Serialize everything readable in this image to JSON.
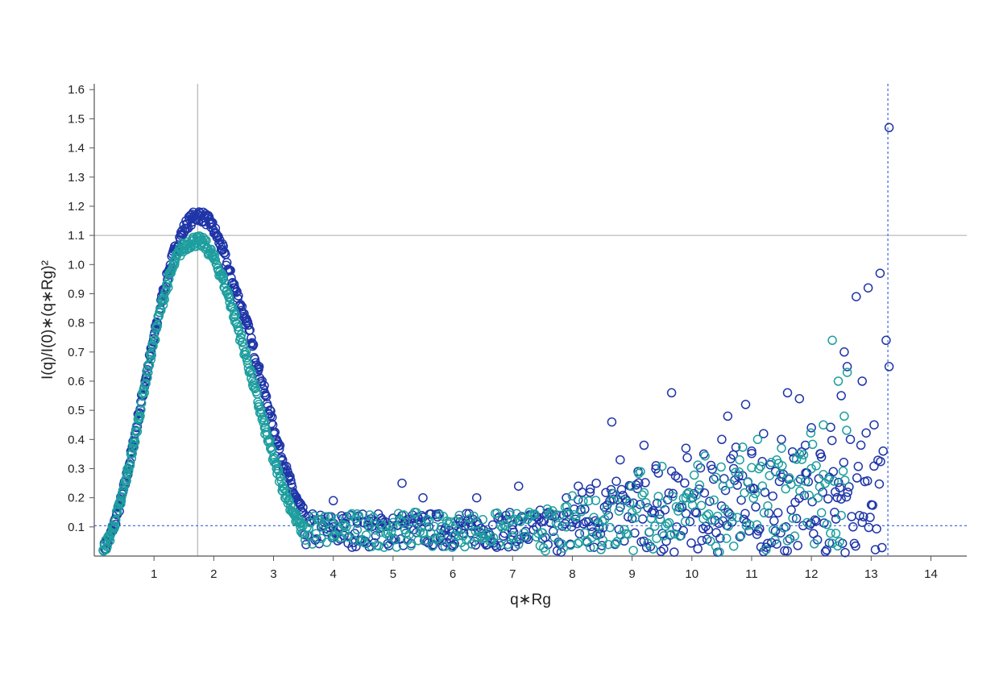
{
  "chart_data": {
    "type": "scatter",
    "xlabel": "q∗Rg",
    "ylabel": "I(q)/I(0)∗(q∗Rg)²",
    "xlim": [
      0,
      14.6
    ],
    "ylim": [
      0,
      1.62
    ],
    "x_ticks": [
      1,
      2,
      3,
      4,
      5,
      6,
      7,
      8,
      9,
      10,
      11,
      12,
      13,
      14
    ],
    "y_ticks": [
      0.1,
      0.2,
      0.3,
      0.4,
      0.5,
      0.6,
      0.7,
      0.8,
      0.9,
      1.0,
      1.1,
      1.2,
      1.3,
      1.4,
      1.5,
      1.6
    ],
    "grid": false,
    "marker": "open-circle",
    "reference_lines": [
      {
        "orientation": "vertical",
        "value": 1.73,
        "style": "solid",
        "color": "#bbbbbb"
      },
      {
        "orientation": "horizontal",
        "value": 1.1,
        "style": "solid",
        "color": "#bbbbbb"
      },
      {
        "orientation": "vertical",
        "value": 13.28,
        "style": "dashed",
        "color": "#4a6fe0"
      },
      {
        "orientation": "horizontal",
        "value": 0.104,
        "style": "dashed",
        "color": "#4a6fe0"
      }
    ],
    "series": [
      {
        "color": "#1f35a8",
        "peak": {
          "x": 1.78,
          "y": 1.17
        },
        "x": [
          0.15,
          0.25,
          0.35,
          0.45,
          0.55,
          0.65,
          0.75,
          0.85,
          0.95,
          1.05,
          1.15,
          1.25,
          1.35,
          1.45,
          1.55,
          1.65,
          1.75,
          1.85,
          1.95,
          2.05,
          2.15,
          2.25,
          2.35,
          2.45,
          2.55,
          2.65,
          2.75,
          2.85,
          2.95,
          3.05,
          3.15,
          3.25,
          3.35,
          3.45,
          3.6,
          3.8,
          4.0,
          4.2,
          4.4,
          4.6,
          4.8,
          5.0,
          5.2,
          5.4,
          5.6,
          5.8,
          6.0,
          6.3,
          6.6,
          7.0,
          7.4,
          7.6,
          7.9,
          8.1,
          8.4,
          8.66,
          8.8,
          9.1,
          9.4,
          9.66,
          9.9,
          10.2,
          10.5,
          10.7,
          10.9,
          11.0,
          11.2,
          11.4,
          11.6,
          11.8,
          11.9,
          12.0,
          12.15,
          12.3,
          12.4,
          12.5,
          12.55,
          12.6,
          12.75,
          12.85,
          12.95,
          13.05,
          13.15,
          13.2,
          13.25,
          13.3,
          13.3,
          5.15,
          4.0,
          5.5,
          6.4,
          7.1,
          8.3,
          9.2,
          10.6,
          11.5
        ],
        "y": [
          0.02,
          0.06,
          0.12,
          0.19,
          0.28,
          0.38,
          0.49,
          0.6,
          0.7,
          0.8,
          0.9,
          0.98,
          1.05,
          1.1,
          1.14,
          1.16,
          1.17,
          1.16,
          1.14,
          1.1,
          1.05,
          0.98,
          0.92,
          0.86,
          0.8,
          0.72,
          0.64,
          0.56,
          0.48,
          0.4,
          0.33,
          0.27,
          0.21,
          0.16,
          0.12,
          0.1,
          0.1,
          0.11,
          0.12,
          0.12,
          0.13,
          0.13,
          0.12,
          0.11,
          0.1,
          0.09,
          0.08,
          0.08,
          0.08,
          0.09,
          0.1,
          0.15,
          0.2,
          0.24,
          0.25,
          0.46,
          0.33,
          0.29,
          0.31,
          0.56,
          0.37,
          0.35,
          0.4,
          0.3,
          0.52,
          0.36,
          0.42,
          0.29,
          0.56,
          0.54,
          0.38,
          0.44,
          0.35,
          0.27,
          0.22,
          0.55,
          0.7,
          0.65,
          0.89,
          0.6,
          0.92,
          0.45,
          0.97,
          0.36,
          0.74,
          0.65,
          1.47,
          0.25,
          0.19,
          0.2,
          0.2,
          0.24,
          0.23,
          0.38,
          0.48,
          0.4
        ]
      },
      {
        "color": "#1e9e9e",
        "peak": {
          "x": 1.72,
          "y": 1.08
        },
        "x": [
          0.15,
          0.25,
          0.35,
          0.45,
          0.55,
          0.65,
          0.75,
          0.85,
          0.95,
          1.05,
          1.15,
          1.25,
          1.35,
          1.45,
          1.55,
          1.65,
          1.75,
          1.85,
          1.95,
          2.05,
          2.15,
          2.25,
          2.35,
          2.45,
          2.55,
          2.65,
          2.75,
          2.85,
          2.95,
          3.05,
          3.15,
          3.25,
          3.35,
          3.45,
          3.6,
          3.8,
          4.0,
          4.2,
          4.4,
          4.6,
          4.8,
          5.0,
          5.2,
          5.5,
          5.8,
          6.1,
          6.5,
          7.0,
          7.5,
          7.9,
          8.5,
          9.0,
          9.5,
          9.9,
          10.4,
          10.8,
          11.1,
          11.5,
          11.8,
          12.0,
          12.2,
          12.35,
          12.45,
          12.55,
          12.6
        ],
        "y": [
          0.02,
          0.06,
          0.12,
          0.19,
          0.28,
          0.37,
          0.48,
          0.59,
          0.69,
          0.79,
          0.88,
          0.95,
          1.01,
          1.05,
          1.07,
          1.08,
          1.08,
          1.07,
          1.04,
          1.0,
          0.95,
          0.89,
          0.82,
          0.75,
          0.68,
          0.6,
          0.52,
          0.44,
          0.37,
          0.3,
          0.24,
          0.19,
          0.14,
          0.1,
          0.07,
          0.06,
          0.07,
          0.08,
          0.09,
          0.1,
          0.11,
          0.1,
          0.09,
          0.08,
          0.07,
          0.07,
          0.06,
          0.07,
          0.08,
          0.1,
          0.12,
          0.15,
          0.18,
          0.2,
          0.27,
          0.33,
          0.4,
          0.37,
          0.35,
          0.3,
          0.45,
          0.74,
          0.6,
          0.48,
          0.63
        ]
      }
    ]
  }
}
